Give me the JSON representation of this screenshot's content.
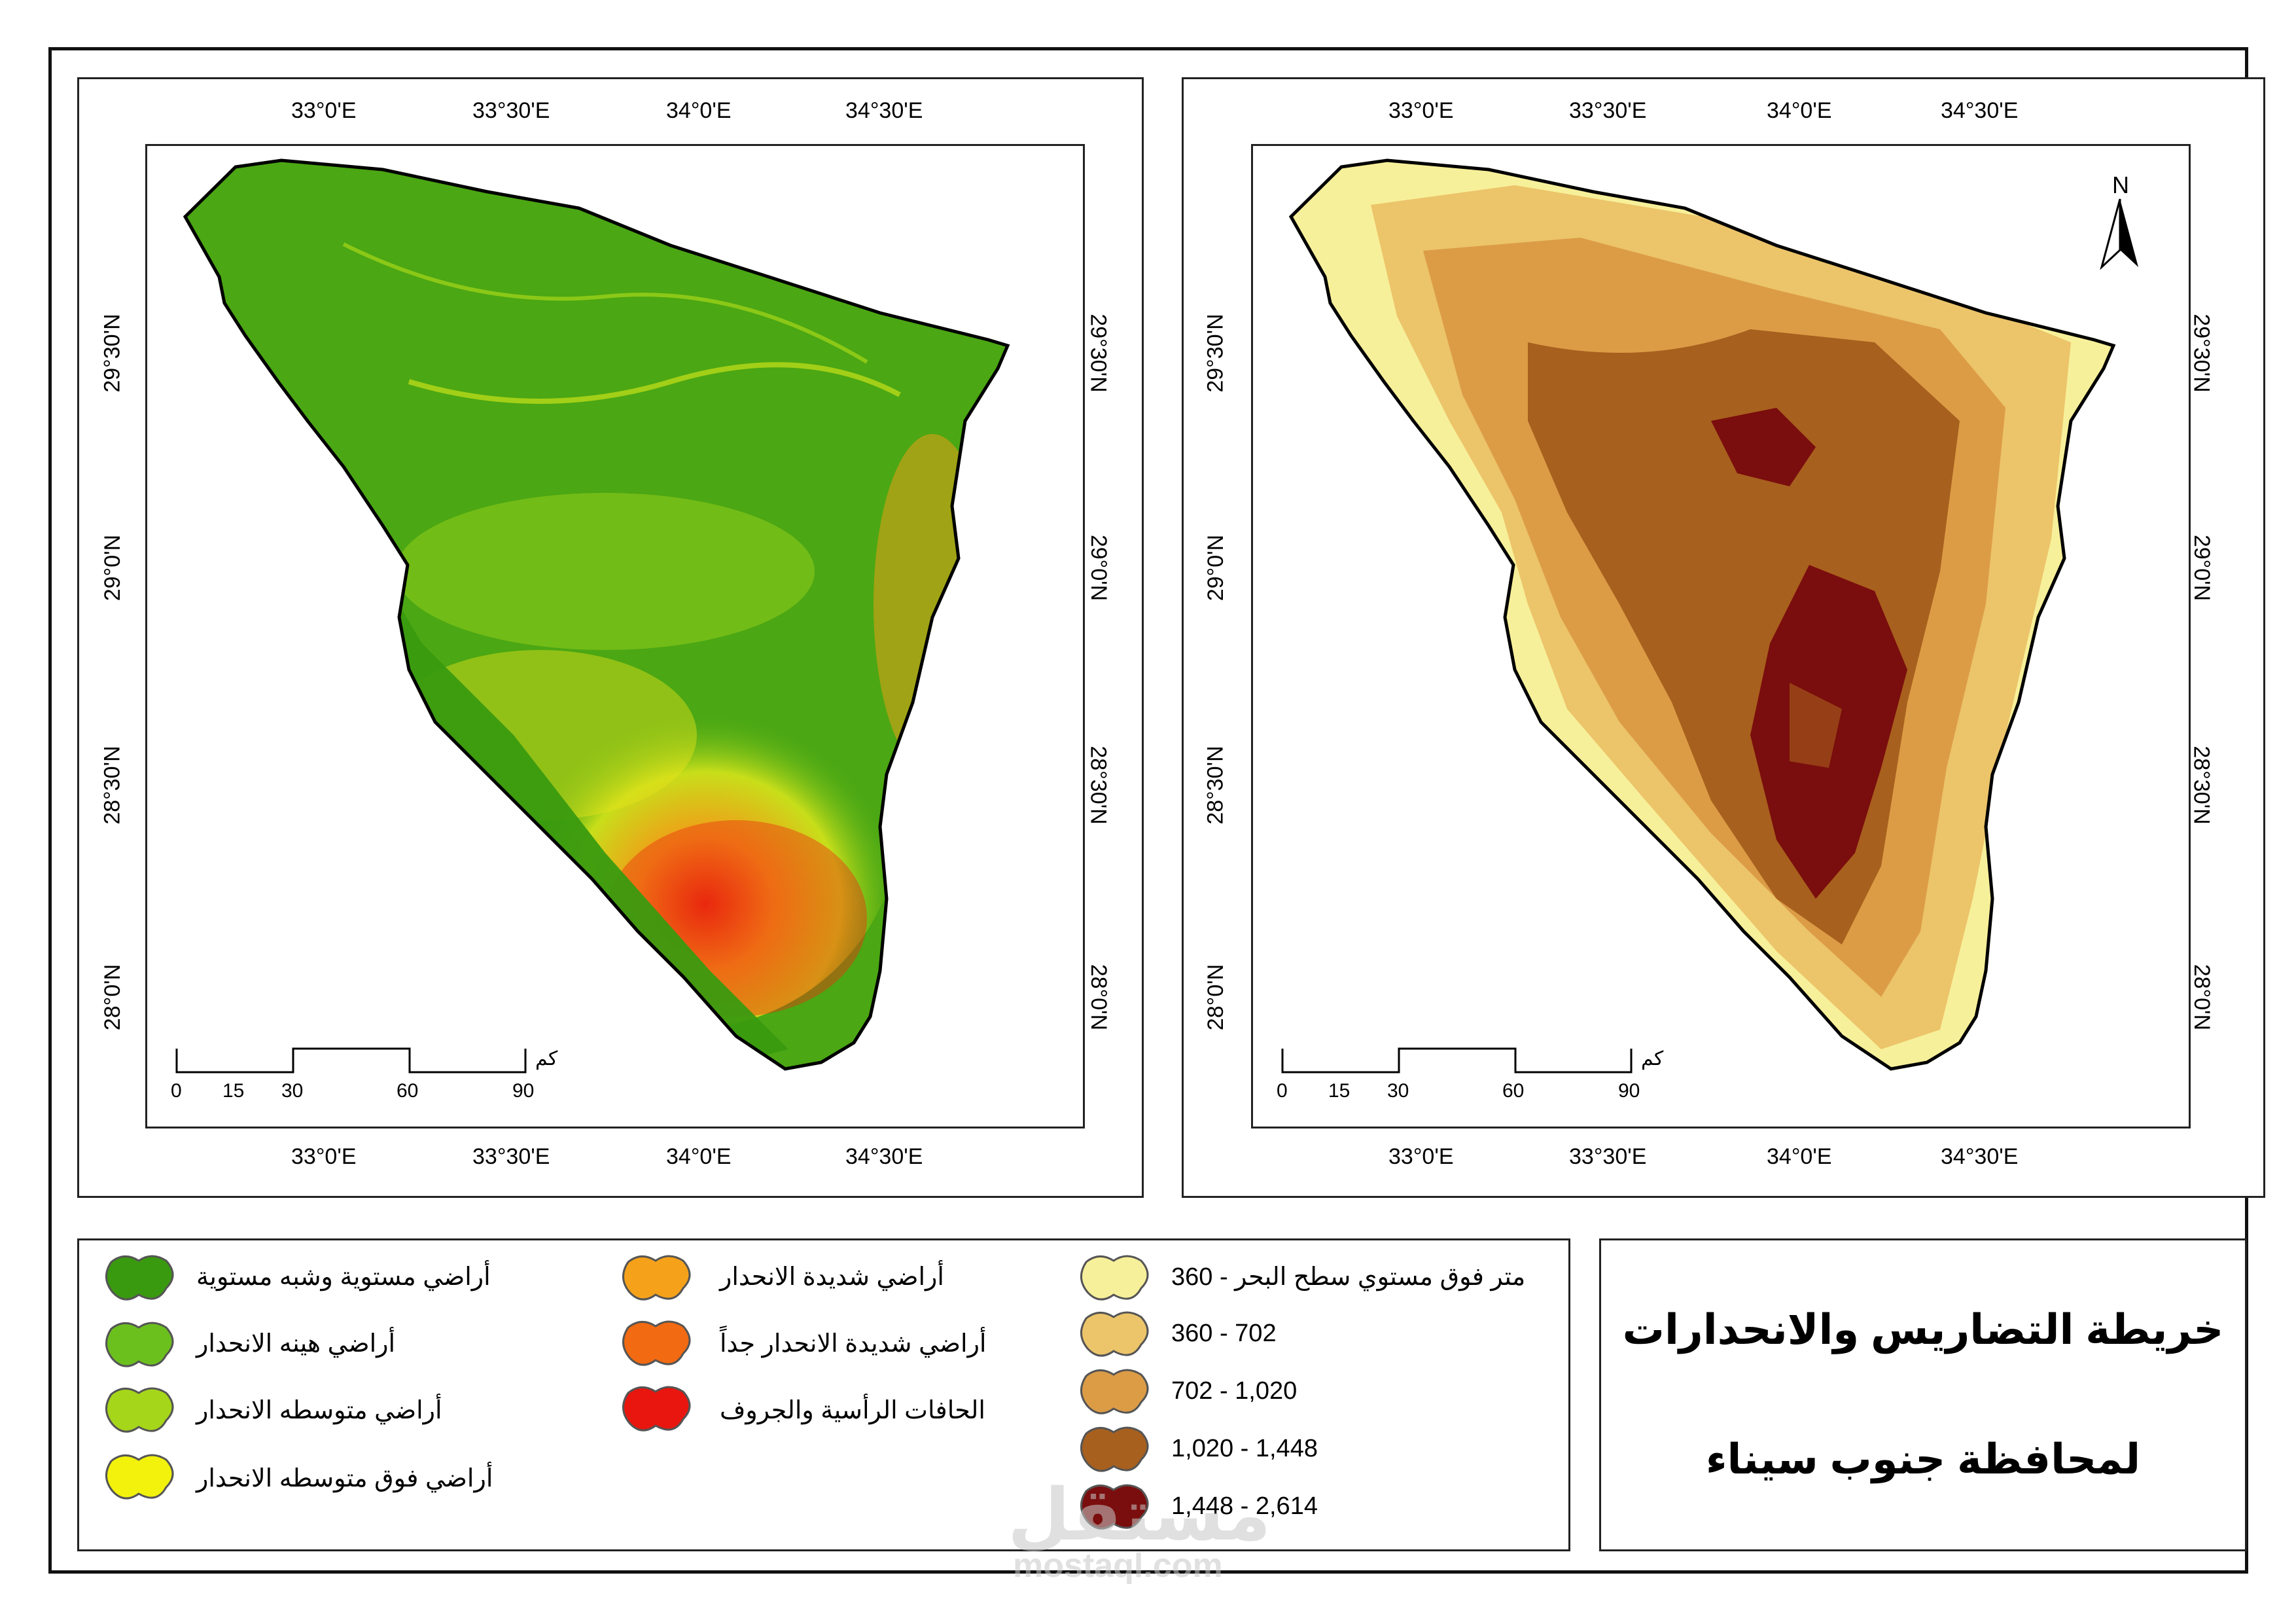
{
  "left_map": {
    "longitudes_top": [
      "33°0'E",
      "33°30'E",
      "34°0'E",
      "34°30'E"
    ],
    "longitudes_bottom": [
      "33°0'E",
      "33°30'E",
      "34°0'E",
      "34°30'E"
    ],
    "latitudes_left": [
      "29°30'N",
      "29°0'N",
      "28°30'N",
      "28°0'N"
    ],
    "latitudes_right": [
      "29°30'N",
      "29°0'N",
      "28°30'N",
      "28°0'N"
    ],
    "scale": {
      "unit": "كم",
      "labels": [
        "0",
        "15",
        "30",
        "60",
        "90"
      ]
    }
  },
  "right_map": {
    "longitudes_top": [
      "33°0'E",
      "33°30'E",
      "34°0'E",
      "34°30'E"
    ],
    "longitudes_bottom": [
      "33°0'E",
      "33°30'E",
      "34°0'E",
      "34°30'E"
    ],
    "latitudes_left": [
      "29°30'N",
      "29°0'N",
      "28°30'N",
      "28°0'N"
    ],
    "latitudes_right": [
      "29°30'N",
      "29°0'N",
      "28°30'N",
      "28°0'N"
    ],
    "north_label": "N",
    "scale": {
      "unit": "كم",
      "labels": [
        "0",
        "15",
        "30",
        "60",
        "90"
      ]
    }
  },
  "slope_legend": [
    {
      "label": "أراضي مستوية وشبه مستوية",
      "color": "#3a9a0f"
    },
    {
      "label": "أراضي هينه الانحدار",
      "color": "#6cc01e"
    },
    {
      "label": "أراضي متوسطه الانحدار",
      "color": "#a6d61a"
    },
    {
      "label": "أراضي فوق متوسطه الانحدار",
      "color": "#f2f20c"
    },
    {
      "label": "أراضي شديدة الانحدار",
      "color": "#f5a21a"
    },
    {
      "label": "أراضي شديدة الانحدار جداً",
      "color": "#f26a12"
    },
    {
      "label": "الحافات الرأسية والجروف",
      "color": "#e8160e"
    }
  ],
  "elevation_legend": [
    {
      "label": "متر فوق مستوي سطح البحر - 360",
      "color": "#f7f09a"
    },
    {
      "label": "360 - 702",
      "color": "#ecc46a"
    },
    {
      "label": "702 - 1,020",
      "color": "#dc9c46"
    },
    {
      "label": "1,020 - 1,448",
      "color": "#a8601e"
    },
    {
      "label": "1,448 - 2,614",
      "color": "#7a0d0d"
    }
  ],
  "title": {
    "line1": "خريطة التضاريس والانحدارات",
    "line2": "لمحافظة جنوب سيناء"
  },
  "watermark": {
    "line1": "مستقل",
    "line2": "mostaql.com"
  }
}
